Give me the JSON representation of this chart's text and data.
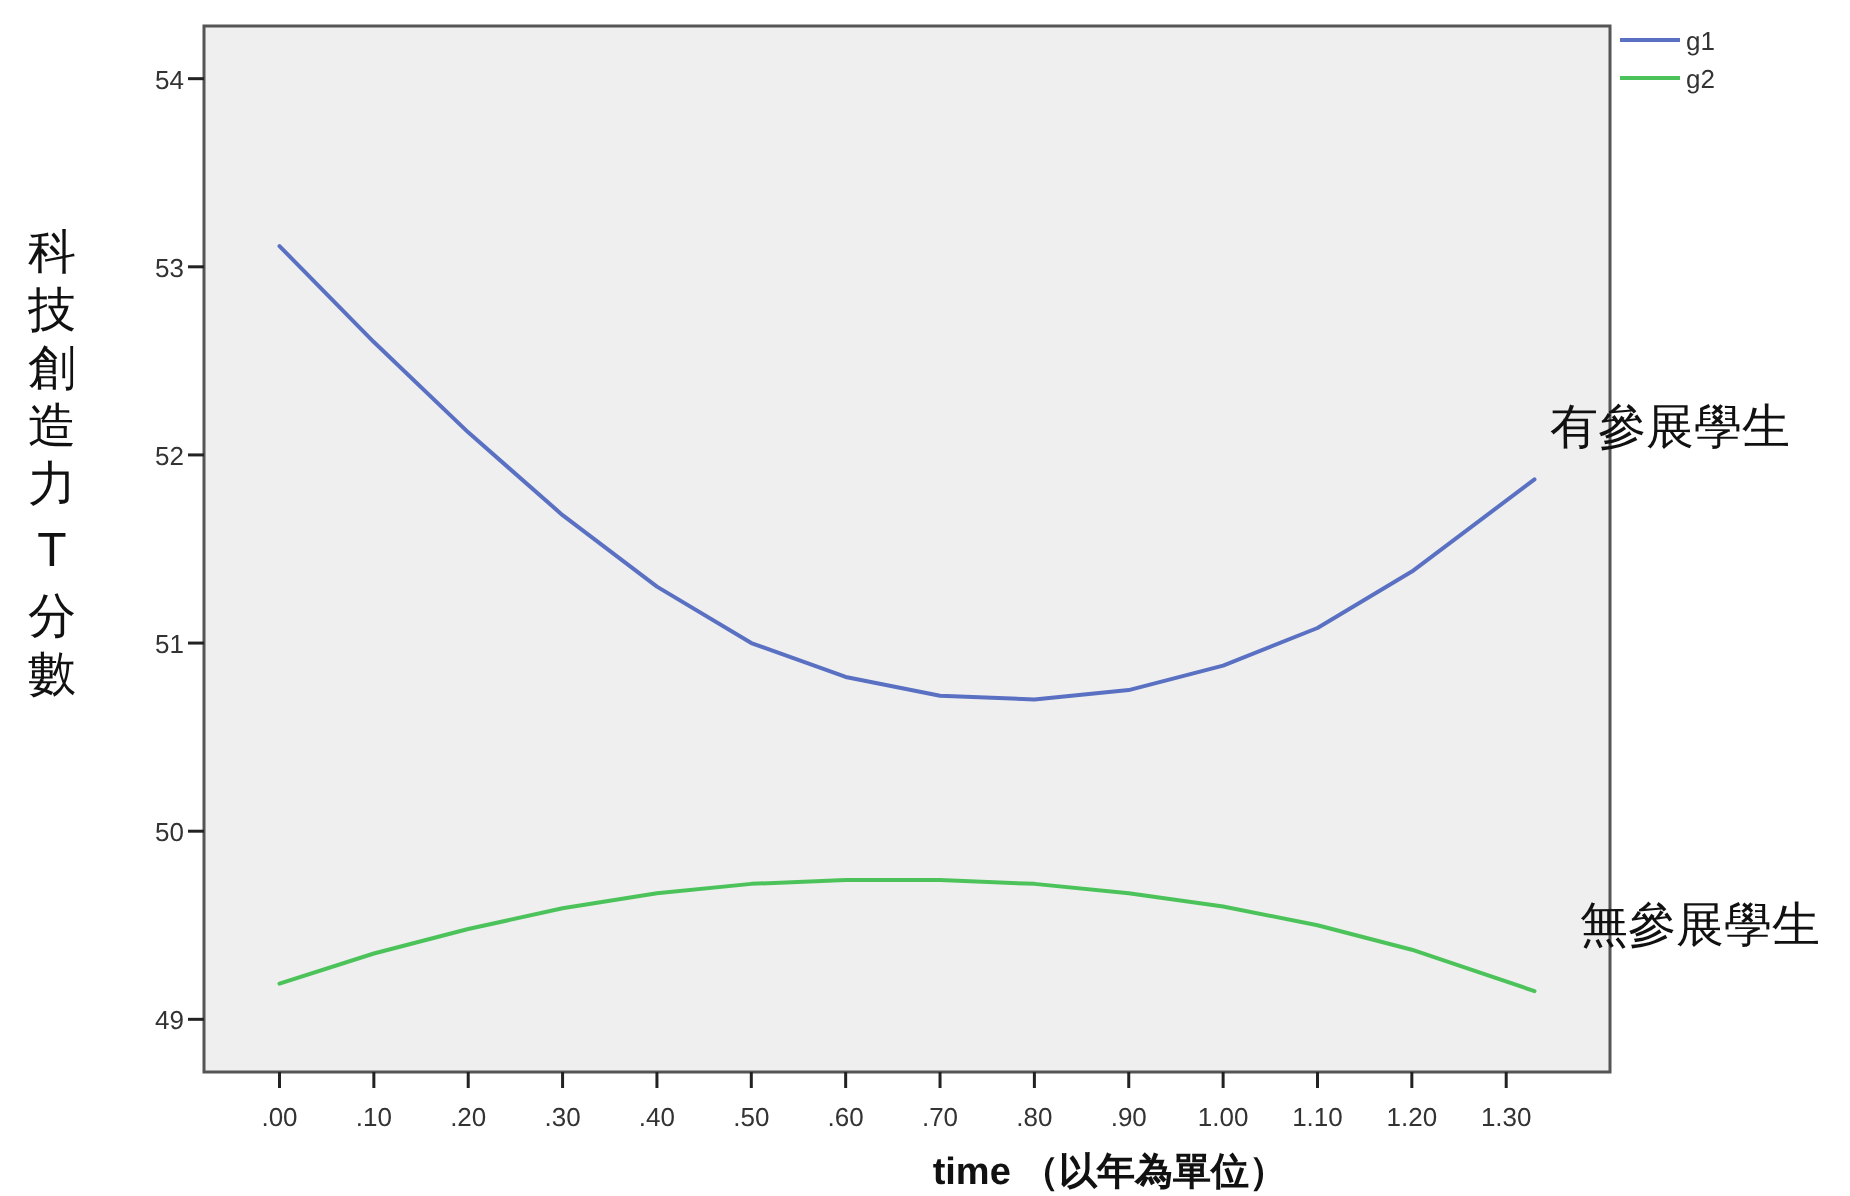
{
  "chart_data": {
    "type": "line",
    "xlabel": "time （以年為單位）",
    "ylabel": "科技創造力 T 分數",
    "x": [
      0,
      0.1,
      0.2,
      0.3,
      0.4,
      0.5,
      0.6,
      0.7,
      0.8,
      0.9,
      1.0,
      1.1,
      1.2,
      1.33
    ],
    "series": [
      {
        "name": "g1",
        "color": "#5a70c2",
        "values": [
          53.11,
          52.6,
          52.12,
          51.68,
          51.3,
          51.0,
          50.82,
          50.72,
          50.7,
          50.75,
          50.88,
          51.08,
          51.38,
          51.87
        ]
      },
      {
        "name": "g2",
        "color": "#4cc35a",
        "values": [
          49.19,
          49.35,
          49.48,
          49.59,
          49.67,
          49.72,
          49.74,
          49.74,
          49.72,
          49.67,
          49.6,
          49.5,
          49.37,
          49.15
        ]
      }
    ],
    "annotations": [
      "有參展學生",
      "無參展學生"
    ],
    "xlim": [
      -0.08,
      1.41
    ],
    "ylim": [
      48.72,
      54.28
    ],
    "xticks": [
      {
        "value": 0,
        "label": ".00"
      },
      {
        "value": 0.1,
        "label": ".10"
      },
      {
        "value": 0.2,
        "label": ".20"
      },
      {
        "value": 0.3,
        "label": ".30"
      },
      {
        "value": 0.4,
        "label": ".40"
      },
      {
        "value": 0.5,
        "label": ".50"
      },
      {
        "value": 0.6,
        "label": ".60"
      },
      {
        "value": 0.7,
        "label": ".70"
      },
      {
        "value": 0.8,
        "label": ".80"
      },
      {
        "value": 0.9,
        "label": ".90"
      },
      {
        "value": 1.0,
        "label": "1.00"
      },
      {
        "value": 1.1,
        "label": "1.10"
      },
      {
        "value": 1.2,
        "label": "1.20"
      },
      {
        "value": 1.3,
        "label": "1.30"
      }
    ],
    "yticks": [
      49,
      50,
      51,
      52,
      53,
      54
    ],
    "grid": false,
    "legend": "top right",
    "marker": "none",
    "line_style": "solid"
  }
}
